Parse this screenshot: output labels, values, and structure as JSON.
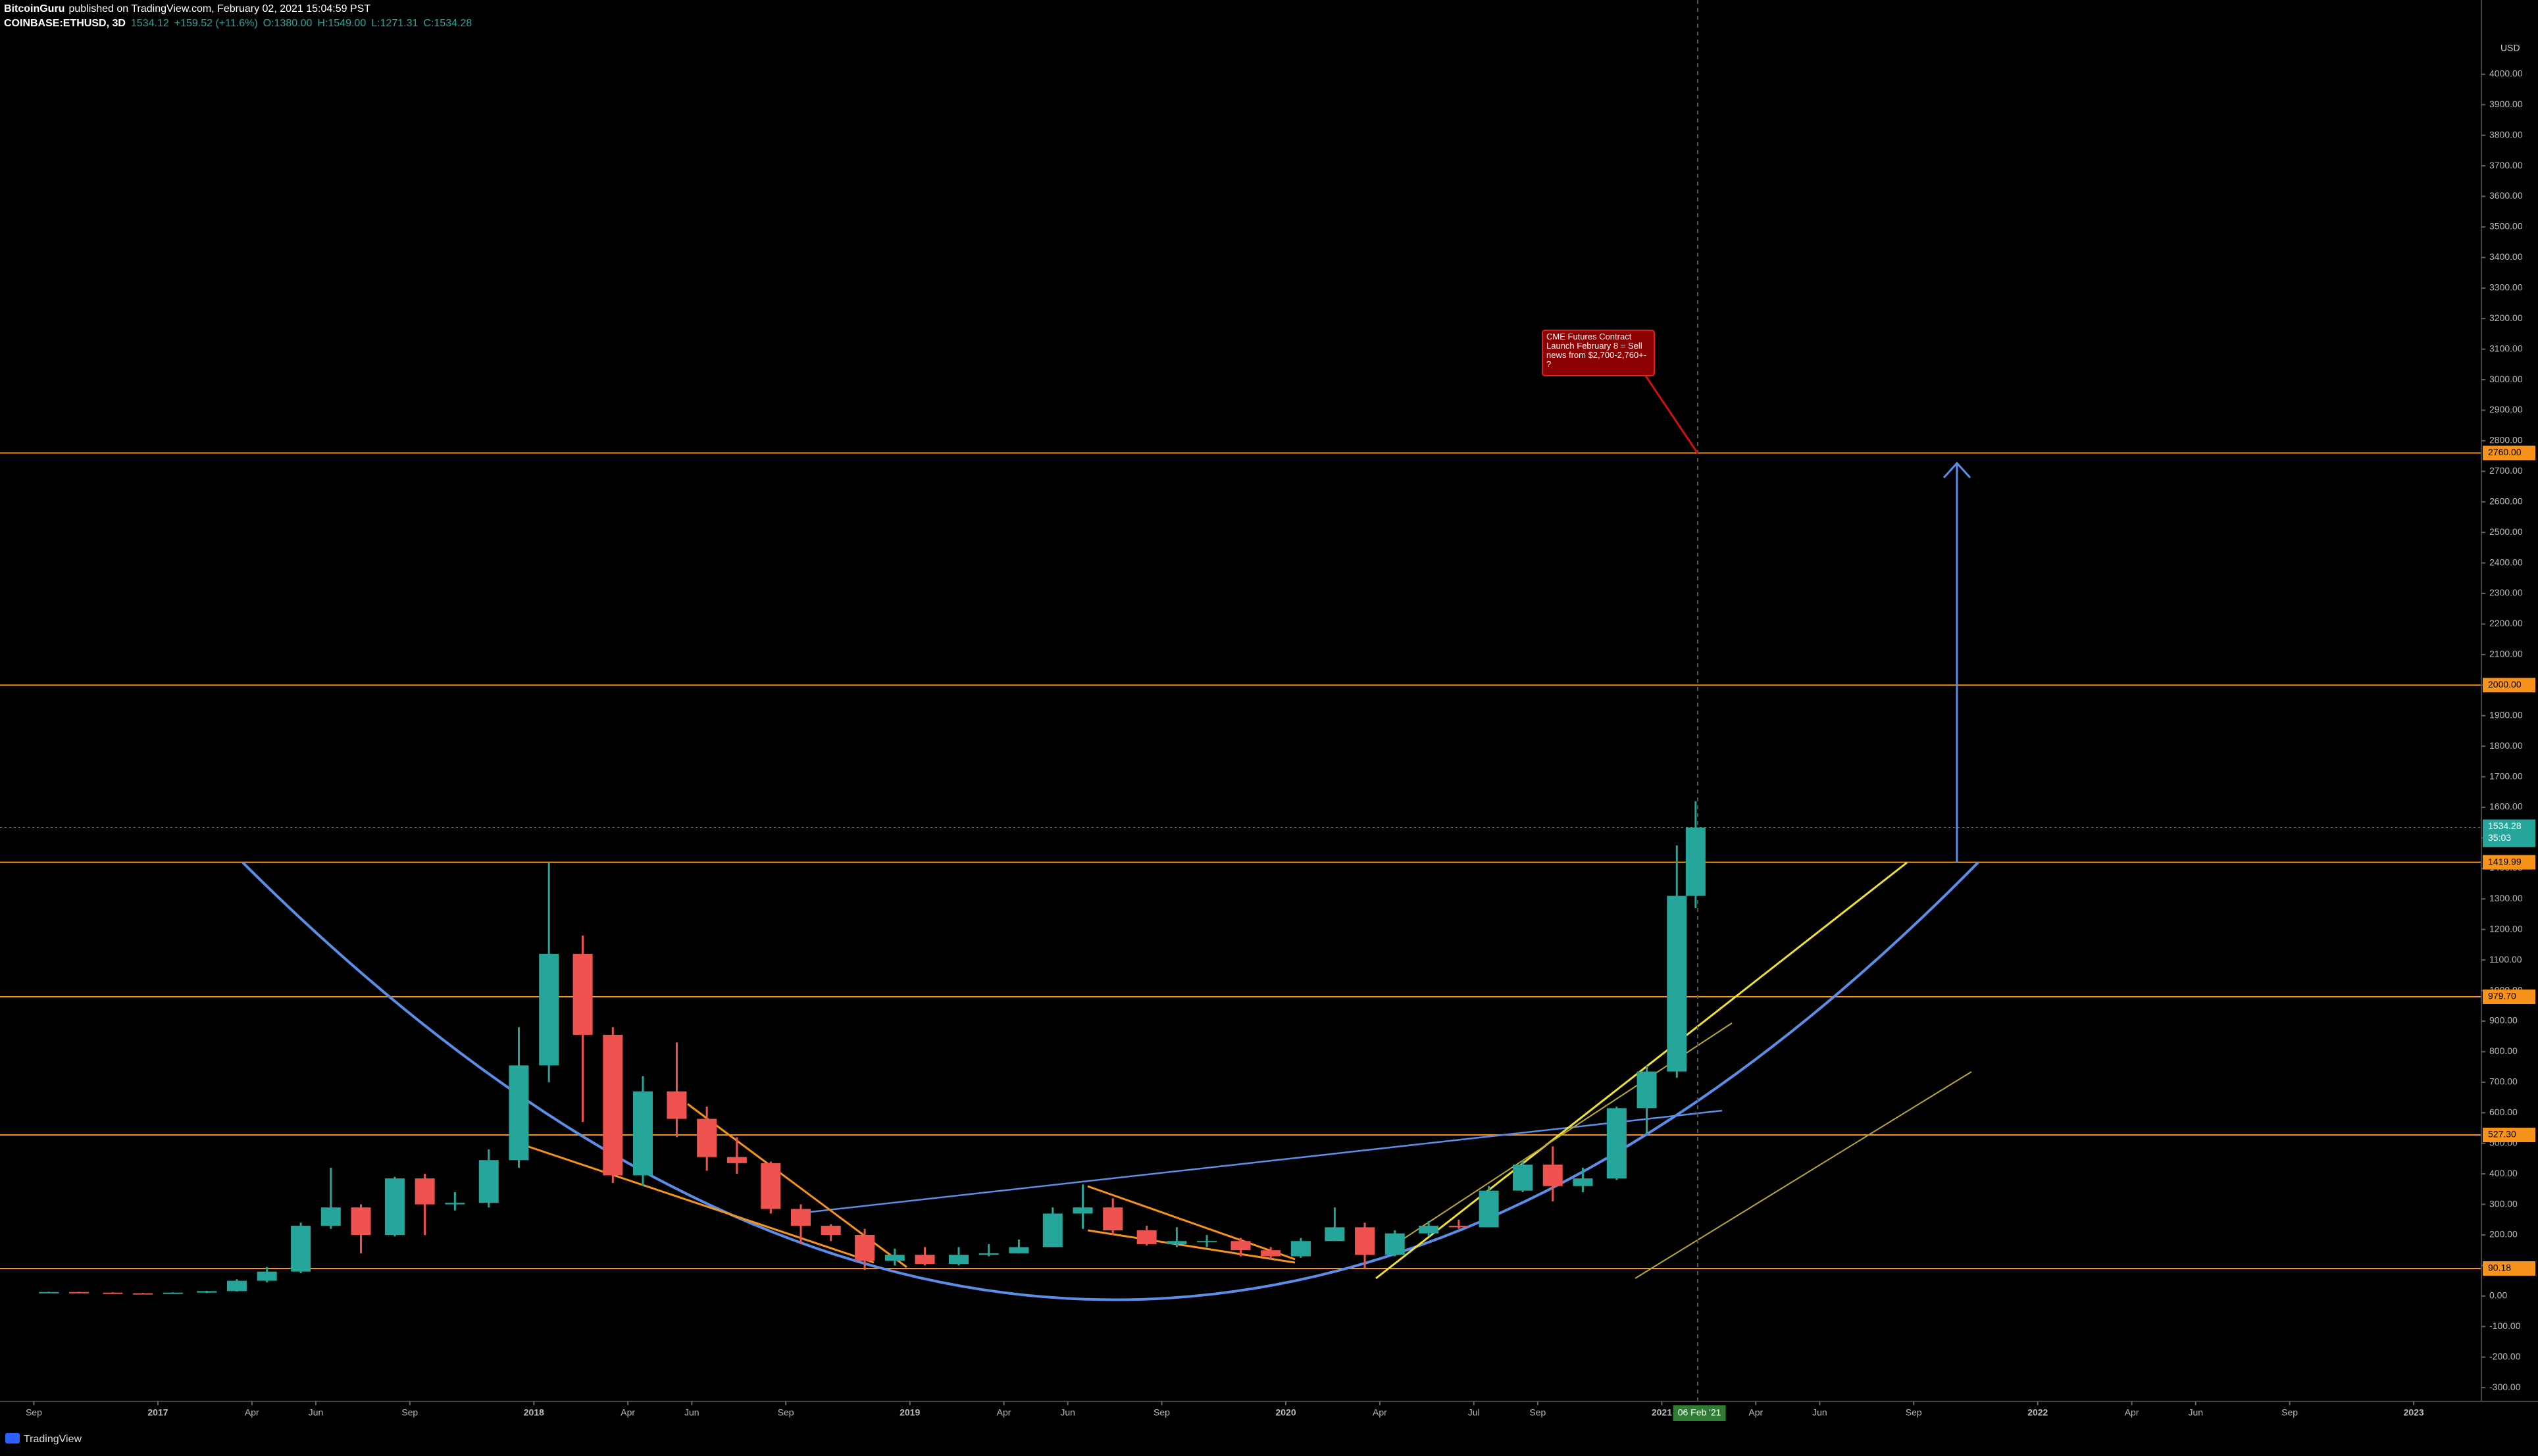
{
  "header": {
    "author": "BitcoinGuru",
    "published": "published on TradingView.com, February 02, 2021 15:04:59 PST",
    "symbol": "COINBASE:ETHUSD, 3D",
    "last": "1534.12",
    "change": "+159.52 (+11.6%)",
    "open": "O:1380.00",
    "high": "H:1549.00",
    "low": "L:1271.31",
    "close": "C:1534.28"
  },
  "footer": {
    "brand": "TradingView"
  },
  "chart_data": {
    "type": "candlestick",
    "currency": "USD",
    "annotation": "CME Futures Contract Launch February 8 = Sell news from $2,700-2,760+- ?",
    "up_color": "#26a69a",
    "down_color": "#ef5350",
    "level_color": "#f7931a",
    "xlim": [
      2016.58,
      2023.18
    ],
    "ylim": [
      -345,
      4243
    ],
    "xticks": [
      {
        "value": 2016.67,
        "label": "Sep"
      },
      2017,
      {
        "value": 2017.25,
        "label": "Apr"
      },
      {
        "value": 2017.42,
        "label": "Jun"
      },
      {
        "value": 2017.67,
        "label": "Sep"
      },
      2018,
      {
        "value": 2018.25,
        "label": "Apr"
      },
      {
        "value": 2018.42,
        "label": "Jun"
      },
      {
        "value": 2018.67,
        "label": "Sep"
      },
      2019,
      {
        "value": 2019.25,
        "label": "Apr"
      },
      {
        "value": 2019.42,
        "label": "Jun"
      },
      {
        "value": 2019.67,
        "label": "Sep"
      },
      2020,
      {
        "value": 2020.25,
        "label": "Apr"
      },
      {
        "value": 2020.5,
        "label": "Jul"
      },
      {
        "value": 2020.67,
        "label": "Sep"
      },
      2021,
      {
        "value": 2021.25,
        "label": "Apr"
      },
      {
        "value": 2021.42,
        "label": "Jun"
      },
      {
        "value": 2021.67,
        "label": "Sep"
      },
      2022,
      {
        "value": 2022.25,
        "label": "Apr"
      },
      {
        "value": 2022.42,
        "label": "Jun"
      },
      {
        "value": 2022.67,
        "label": "Sep"
      },
      2023
    ],
    "cursor_date": {
      "value": 2021.1,
      "label": "06 Feb '21"
    },
    "yticks": [
      {
        "value": -300,
        "label": "-300.00"
      },
      {
        "value": -200,
        "label": "-200.00"
      },
      {
        "value": -100,
        "label": "-100.00"
      },
      {
        "value": 0,
        "label": "0.00"
      },
      {
        "value": 100,
        "label": "100.00"
      },
      {
        "value": 200,
        "label": "200.00"
      },
      {
        "value": 300,
        "label": "300.00"
      },
      {
        "value": 400,
        "label": "400.00"
      },
      {
        "value": 500,
        "label": "500.00"
      },
      {
        "value": 600,
        "label": "600.00"
      },
      {
        "value": 700,
        "label": "700.00"
      },
      {
        "value": 800,
        "label": "800.00"
      },
      {
        "value": 900,
        "label": "900.00"
      },
      {
        "value": 1000,
        "label": "1000.00"
      },
      {
        "value": 1100,
        "label": "1100.00"
      },
      {
        "value": 1200,
        "label": "1200.00"
      },
      {
        "value": 1300,
        "label": "1300.00"
      },
      {
        "value": 1400,
        "label": "1400.00"
      },
      {
        "value": 1500,
        "label": "1500.00"
      },
      {
        "value": 1600,
        "label": "1600.00"
      },
      {
        "value": 1700,
        "label": "1700.00"
      },
      {
        "value": 1800,
        "label": "1800.00"
      },
      {
        "value": 1900,
        "label": "1900.00"
      },
      {
        "value": 2000,
        "label": "2000.00"
      },
      {
        "value": 2100,
        "label": "2100.00"
      },
      {
        "value": 2200,
        "label": "2200.00"
      },
      {
        "value": 2300,
        "label": "2300.00"
      },
      {
        "value": 2400,
        "label": "2400.00"
      },
      {
        "value": 2500,
        "label": "2500.00"
      },
      {
        "value": 2600,
        "label": "2600.00"
      },
      {
        "value": 2700,
        "label": "2700.00"
      },
      {
        "value": 2800,
        "label": "2800.00"
      },
      {
        "value": 2900,
        "label": "2900.00"
      },
      {
        "value": 3000,
        "label": "3000.00"
      },
      {
        "value": 3100,
        "label": "3100.00"
      },
      {
        "value": 3200,
        "label": "3200.00"
      },
      {
        "value": 3300,
        "label": "3300.00"
      },
      {
        "value": 3400,
        "label": "3400.00"
      },
      {
        "value": 3500,
        "label": "3500.00"
      },
      {
        "value": 3600,
        "label": "3600.00"
      },
      {
        "value": 3700,
        "label": "3700.00"
      },
      {
        "value": 3800,
        "label": "3800.00"
      },
      {
        "value": 3900,
        "label": "3900.00"
      },
      {
        "value": 4000,
        "label": "4000.00"
      }
    ],
    "levels": [
      {
        "value": 2760,
        "label": "2760.00"
      },
      {
        "value": 2000,
        "label": "2000.00"
      },
      {
        "value": 1419.99,
        "label": "1419.99"
      },
      {
        "value": 979.7,
        "label": "979.70"
      },
      {
        "value": 527.3,
        "label": "527.30"
      },
      {
        "value": 90.18,
        "label": "90.18"
      }
    ],
    "last_price": {
      "value": 1534.28,
      "label": "1534.28",
      "countdown": "35:03"
    },
    "candles": {
      "x": [
        2016.71,
        2016.79,
        2016.88,
        2016.96,
        2017.04,
        2017.13,
        2017.21,
        2017.29,
        2017.38,
        2017.46,
        2017.54,
        2017.63,
        2017.71,
        2017.79,
        2017.88,
        2017.96,
        2018.04,
        2018.13,
        2018.21,
        2018.29,
        2018.38,
        2018.46,
        2018.54,
        2018.63,
        2018.71,
        2018.79,
        2018.88,
        2018.96,
        2019.04,
        2019.13,
        2019.21,
        2019.29,
        2019.38,
        2019.46,
        2019.54,
        2019.63,
        2019.71,
        2019.79,
        2019.88,
        2019.96,
        2020.04,
        2020.13,
        2020.21,
        2020.29,
        2020.38,
        2020.46,
        2020.54,
        2020.63,
        2020.71,
        2020.79,
        2020.88,
        2020.96,
        2021.04,
        2021.09
      ],
      "open": [
        12,
        13,
        11,
        9,
        8,
        11,
        16,
        50,
        80,
        230,
        290,
        200,
        385,
        300,
        305,
        445,
        755,
        1120,
        855,
        395,
        670,
        580,
        455,
        435,
        285,
        230,
        200,
        115,
        135,
        105,
        135,
        140,
        160,
        270,
        290,
        215,
        170,
        180,
        180,
        150,
        130,
        180,
        225,
        135,
        205,
        230,
        225,
        345,
        430,
        360,
        385,
        615,
        735,
        1310
      ],
      "high": [
        14,
        14,
        12,
        10,
        12,
        17,
        55,
        95,
        240,
        420,
        300,
        390,
        400,
        340,
        480,
        880,
        1420,
        1180,
        880,
        720,
        830,
        620,
        520,
        440,
        300,
        235,
        220,
        155,
        160,
        160,
        170,
        185,
        290,
        365,
        320,
        230,
        225,
        200,
        190,
        160,
        190,
        290,
        240,
        215,
        245,
        250,
        360,
        445,
        490,
        420,
        620,
        755,
        1475,
        1620
      ],
      "low": [
        11,
        10,
        8,
        7,
        8,
        10,
        15,
        45,
        75,
        220,
        140,
        195,
        200,
        280,
        290,
        420,
        700,
        570,
        370,
        360,
        520,
        410,
        400,
        270,
        170,
        180,
        85,
        100,
        100,
        100,
        130,
        140,
        160,
        220,
        200,
        165,
        160,
        160,
        130,
        120,
        125,
        180,
        90,
        130,
        195,
        220,
        225,
        340,
        310,
        340,
        380,
        530,
        715,
        1270
      ],
      "close": [
        13,
        11,
        9,
        8,
        11,
        16,
        50,
        80,
        230,
        290,
        200,
        385,
        300,
        305,
        445,
        755,
        1120,
        855,
        395,
        670,
        580,
        455,
        435,
        285,
        230,
        200,
        115,
        135,
        105,
        135,
        140,
        160,
        270,
        290,
        215,
        170,
        180,
        180,
        150,
        130,
        180,
        225,
        135,
        205,
        230,
        225,
        345,
        430,
        360,
        385,
        615,
        735,
        1310,
        1534
      ]
    }
  }
}
